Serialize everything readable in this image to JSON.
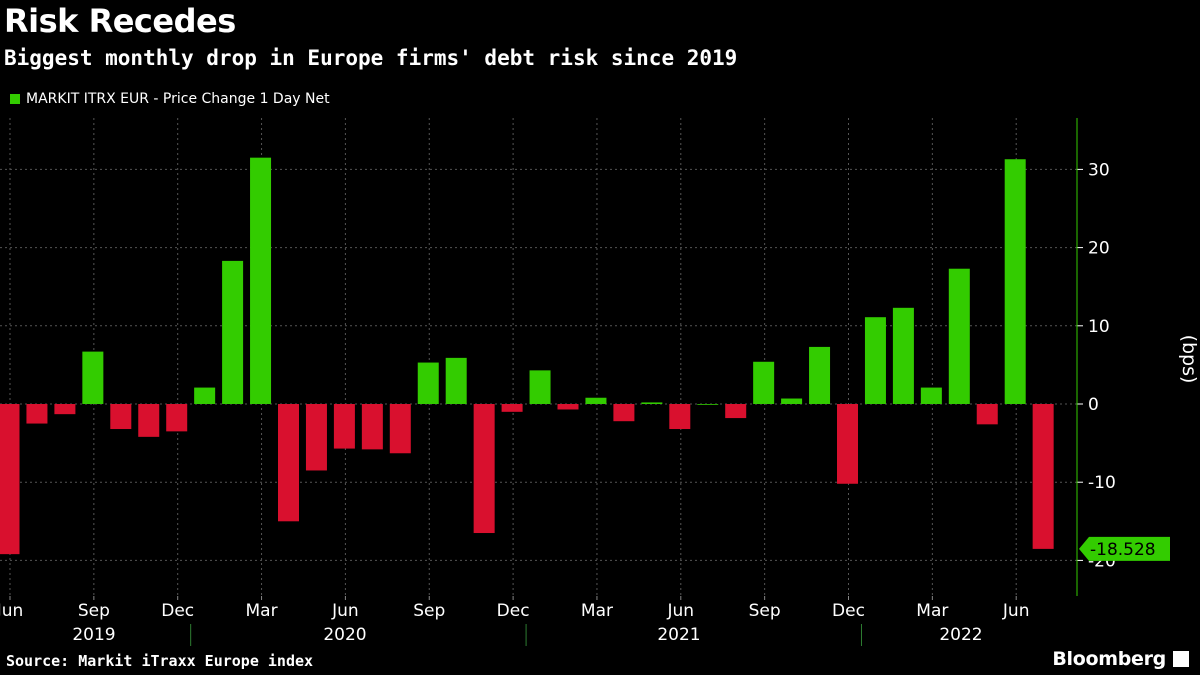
{
  "header": {
    "title": "Risk Recedes",
    "subtitle": "Biggest monthly drop in Europe firms' debt risk since 2019"
  },
  "legend": {
    "label": "MARKIT ITRX EUR - Price Change 1 Day Net",
    "color": "#33cc00"
  },
  "footer": {
    "source": "Source: Markit iTraxx Europe index",
    "brand": "Bloomberg"
  },
  "chart_data": {
    "type": "bar",
    "start": "2019-06",
    "categories": [
      "Jun 2019",
      "Jul 2019",
      "Aug 2019",
      "Sep 2019",
      "Oct 2019",
      "Nov 2019",
      "Dec 2019",
      "Jan 2020",
      "Feb 2020",
      "Mar 2020",
      "Apr 2020",
      "May 2020",
      "Jun 2020",
      "Jul 2020",
      "Aug 2020",
      "Sep 2020",
      "Oct 2020",
      "Nov 2020",
      "Dec 2020",
      "Jan 2021",
      "Feb 2021",
      "Mar 2021",
      "Apr 2021",
      "May 2021",
      "Jun 2021",
      "Jul 2021",
      "Aug 2021",
      "Sep 2021",
      "Oct 2021",
      "Nov 2021",
      "Dec 2021",
      "Jan 2022",
      "Feb 2022",
      "Mar 2022",
      "Apr 2022",
      "May 2022",
      "Jun 2022",
      "Jul 2022"
    ],
    "series": [
      {
        "name": "MARKIT ITRX EUR - Price Change 1 Day Net",
        "values": [
          -19.2,
          -2.5,
          -1.3,
          6.7,
          -3.2,
          -4.2,
          -3.5,
          2.1,
          18.3,
          31.5,
          -15.0,
          -8.5,
          -5.7,
          -5.8,
          -6.3,
          5.3,
          5.9,
          -16.5,
          -1.0,
          4.3,
          -0.7,
          0.8,
          -2.2,
          0.2,
          -3.2,
          0.0,
          -1.8,
          5.4,
          0.7,
          7.3,
          -10.2,
          11.1,
          12.3,
          2.1,
          17.3,
          -2.6,
          31.3,
          -18.528
        ]
      }
    ],
    "colors": {
      "positive": "#33cc00",
      "negative": "#d9102e"
    },
    "ylim": [
      -24,
      36
    ],
    "yticks": [
      30,
      20,
      10,
      0,
      -10,
      -20
    ],
    "ylabel": "(bps)",
    "x_tick_labels": [
      "Jun",
      "Sep",
      "Dec",
      "Mar",
      "Jun",
      "Sep",
      "Dec",
      "Mar",
      "Jun",
      "Sep",
      "Dec",
      "Mar",
      "Jun"
    ],
    "year_labels": [
      "2019",
      "2020",
      "2021",
      "2022"
    ],
    "last_value_label": "-18.528",
    "grid": true
  }
}
